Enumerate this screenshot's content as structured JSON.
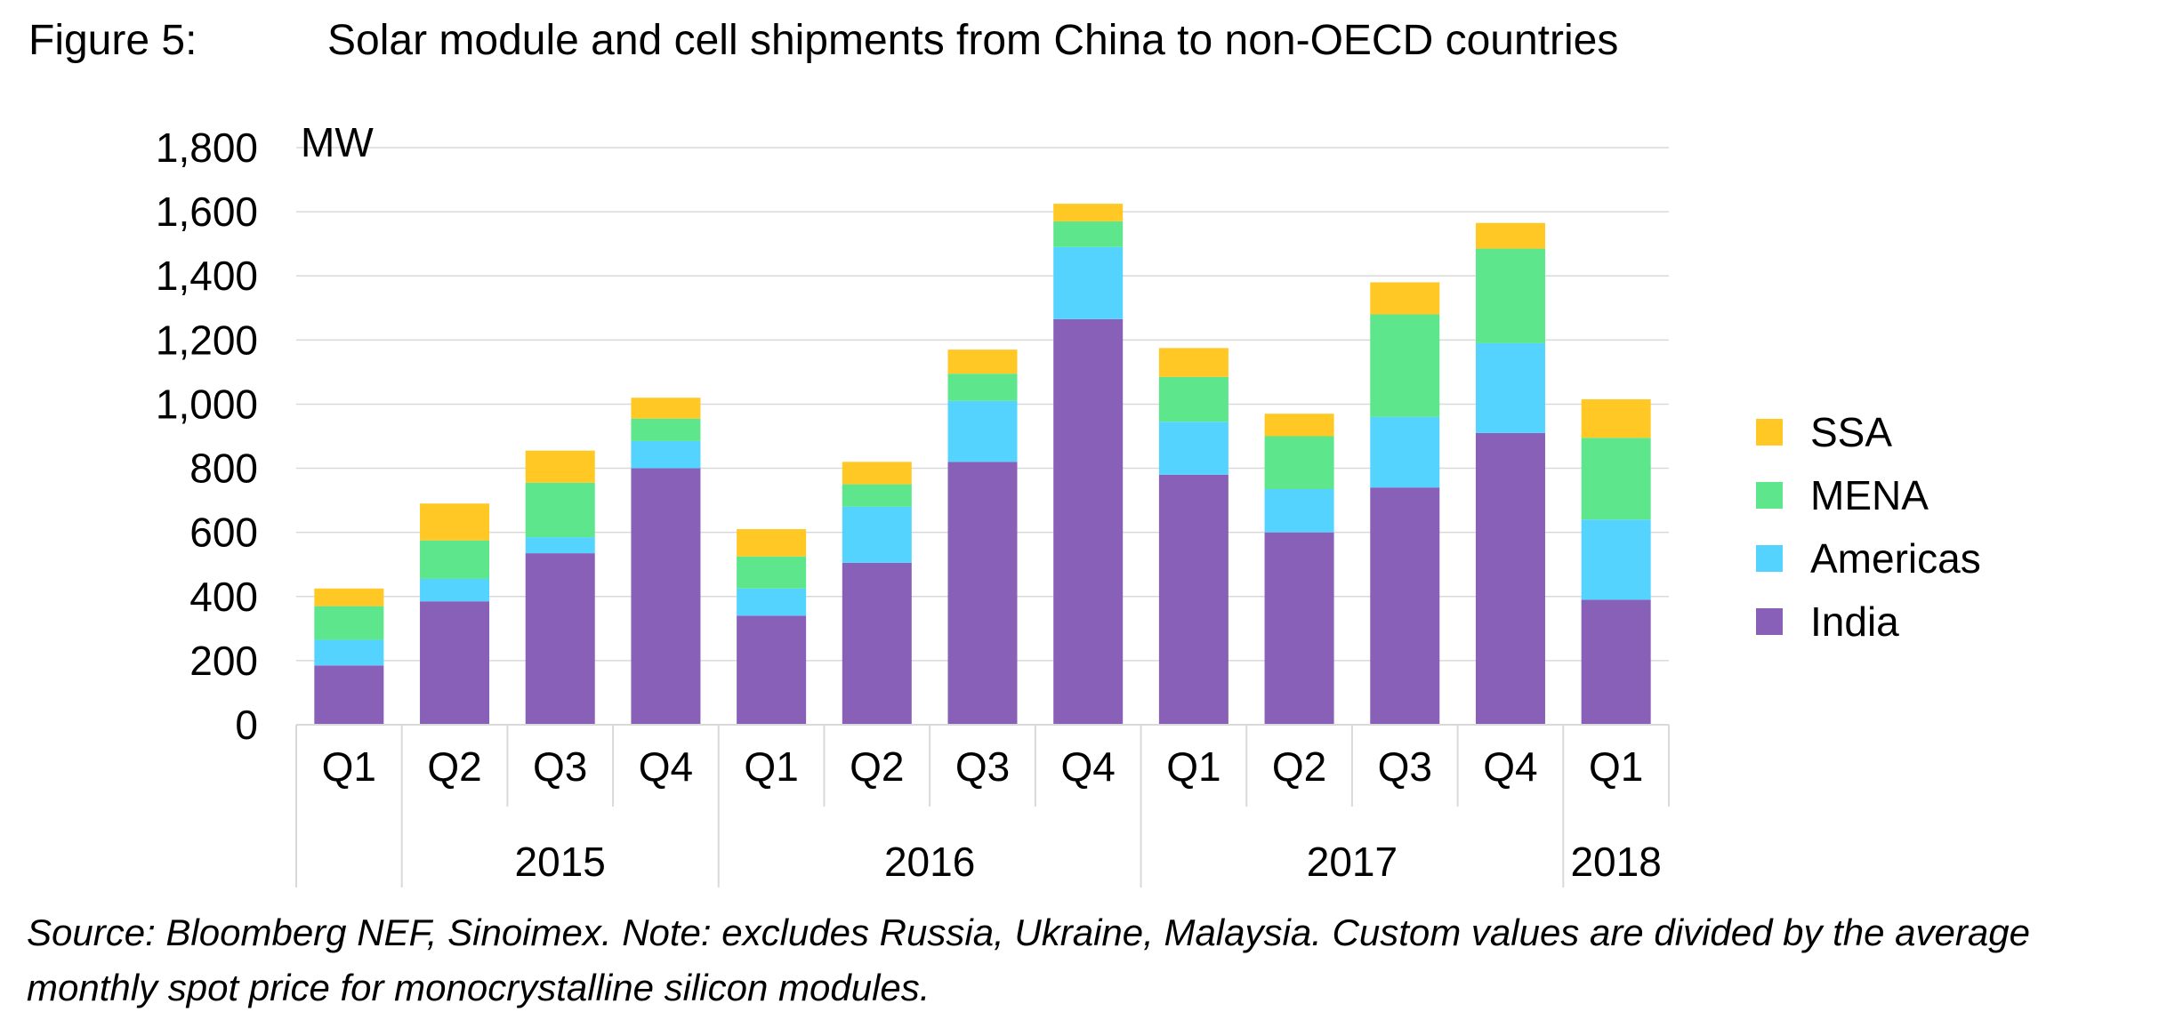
{
  "figure_label": "Figure 5:",
  "figure_title": "Solar module and cell shipments from China to non-OECD countries",
  "source_note": "Source: Bloomberg NEF, Sinoimex. Note: excludes Russia, Ukraine, Malaysia. Custom values are divided by the average monthly spot price for monocrystalline silicon modules.",
  "chart_data": {
    "type": "bar",
    "stacked": true,
    "unit_label": "MW",
    "ylim": [
      0,
      1800
    ],
    "yticks": [
      0,
      200,
      400,
      600,
      800,
      1000,
      1200,
      1400,
      1600,
      1800
    ],
    "ytick_labels": [
      "0",
      "200",
      "400",
      "600",
      "800",
      "1,000",
      "1,200",
      "1,400",
      "1,600",
      "1,800"
    ],
    "grid": true,
    "legend_position": "right",
    "categories": [
      "Q1",
      "Q2",
      "Q3",
      "Q4",
      "Q1",
      "Q2",
      "Q3",
      "Q4",
      "Q1",
      "Q2",
      "Q3",
      "Q4",
      "Q1"
    ],
    "year_groups": [
      {
        "label": "",
        "count": 1
      },
      {
        "label": "2015",
        "count": 3
      },
      {
        "label": "2016",
        "count": 4
      },
      {
        "label": "2017",
        "count": 4
      },
      {
        "label": "2018",
        "count": 1
      }
    ],
    "series": [
      {
        "name": "India",
        "color": "#8860B8",
        "values": [
          185,
          385,
          535,
          800,
          340,
          505,
          820,
          1265,
          780,
          600,
          740,
          910,
          390
        ]
      },
      {
        "name": "Americas",
        "color": "#55D3FF",
        "values": [
          80,
          70,
          50,
          85,
          85,
          175,
          190,
          225,
          165,
          135,
          220,
          280,
          250
        ]
      },
      {
        "name": "MENA",
        "color": "#5DE68B",
        "values": [
          105,
          120,
          170,
          70,
          100,
          70,
          85,
          80,
          140,
          165,
          320,
          295,
          255
        ]
      },
      {
        "name": "SSA",
        "color": "#FFC825",
        "values": [
          55,
          115,
          100,
          65,
          85,
          70,
          75,
          55,
          90,
          70,
          100,
          80,
          120
        ]
      }
    ]
  }
}
